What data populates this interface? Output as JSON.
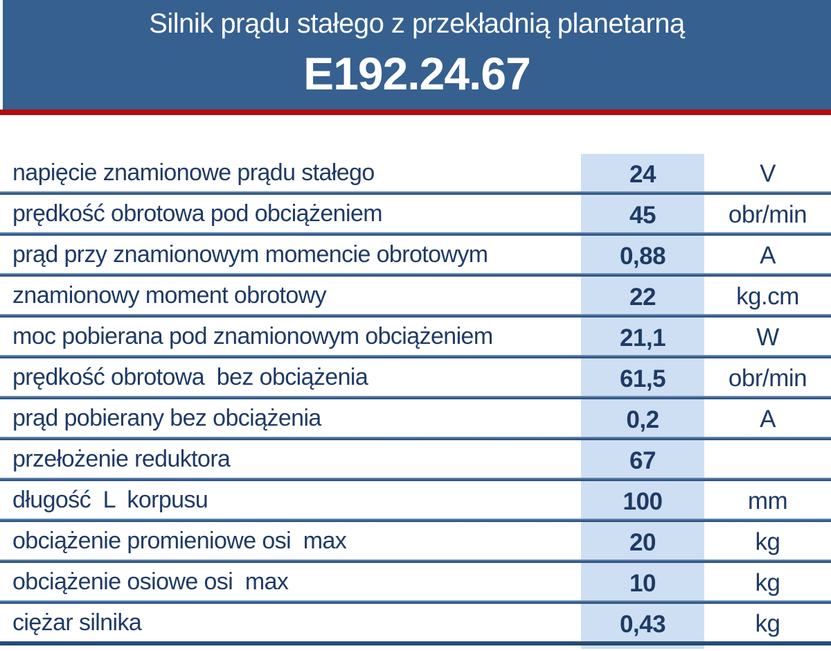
{
  "header": {
    "title": "Silnik prądu stałego z przekładnią planetarną",
    "model": "E192.24.67"
  },
  "colors": {
    "header_bg": "#36608F",
    "accent_red": "#B30D0D",
    "text_navy": "#1E3A66",
    "highlight_column": "#CEDFF3",
    "separator_light": "#7C99BE",
    "separator_dark": "#2E5586",
    "bottom_line": "#24466F"
  },
  "table": {
    "rows": [
      {
        "label": "napięcie znamionowe prądu stałego",
        "value": "24",
        "unit": "V"
      },
      {
        "label": "prędkość obrotowa pod obciążeniem",
        "value": "45",
        "unit": "obr/min"
      },
      {
        "label": "prąd przy znamionowym momencie obrotowym",
        "value": "0,88",
        "unit": "A"
      },
      {
        "label": "znamionowy moment obrotowy",
        "value": "22",
        "unit": "kg.cm"
      },
      {
        "label": "moc pobierana pod znamionowym obciążeniem",
        "value": "21,1",
        "unit": "W"
      },
      {
        "label": "prędkość obrotowa  bez obciążenia",
        "value": "61,5",
        "unit": "obr/min"
      },
      {
        "label": "prąd pobierany bez obciążenia",
        "value": "0,2",
        "unit": "A"
      },
      {
        "label": "przełożenie reduktora",
        "value": "67",
        "unit": ""
      },
      {
        "label": "długość  L  korpusu",
        "value": "100",
        "unit": "mm"
      },
      {
        "label": "obciążenie promieniowe osi  max",
        "value": "20",
        "unit": "kg"
      },
      {
        "label": "obciążenie osiowe osi  max",
        "value": "10",
        "unit": "kg"
      },
      {
        "label": "ciężar silnika",
        "value": "0,43",
        "unit": "kg"
      }
    ]
  }
}
